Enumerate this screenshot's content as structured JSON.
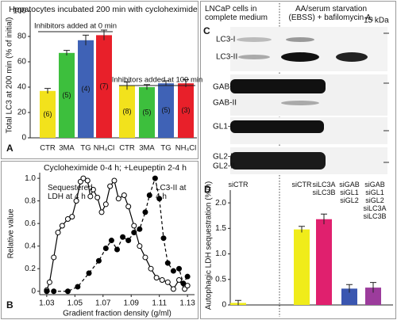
{
  "chart_data": [
    {
      "type": "bar",
      "panel": "A",
      "title": "Hepatocytes incubated 200 min with cycloheximide",
      "y_label": "Total LC3 at 200 min (% of initial)",
      "group_labels": [
        "Inhibitors added at 0 min",
        "Inhibitors added at 100 min"
      ],
      "categories": [
        "CTR",
        "3MA",
        "TG",
        "NH₄Cl",
        "CTR",
        "3MA",
        "TG",
        "NH₄Cl"
      ],
      "values": [
        37,
        67,
        77,
        81,
        41,
        40,
        43,
        43
      ],
      "errors": [
        2,
        2,
        4,
        4,
        3,
        2,
        2,
        3
      ],
      "counts": [
        "(6)",
        "(5)",
        "(4)",
        "(7)",
        "(8)",
        "(5)",
        "(5)",
        "(3)"
      ],
      "colors": [
        "#f2e21c",
        "#3dbf3d",
        "#3f62b6",
        "#e8202a",
        "#f2e21c",
        "#3dbf3d",
        "#3f62b6",
        "#e8202a"
      ],
      "ylim": [
        0,
        100
      ],
      "yticks": [
        0,
        20,
        40,
        60,
        80,
        100
      ]
    },
    {
      "type": "line",
      "panel": "B",
      "title": "Cycloheximide 0-4 h; +Leupeptin 2-4 h",
      "x_label": "Gradient fraction density (g/ml)",
      "y_label": "Relative value",
      "xlim": [
        1.025,
        1.135
      ],
      "xticks": [
        1.03,
        1.05,
        1.07,
        1.09,
        1.11,
        1.13
      ],
      "ylim": [
        -0.03,
        1.05
      ],
      "yticks": [
        0,
        0.2,
        0.4,
        0.6,
        0.8,
        {
          "value": 1,
          "label": "1.0"
        }
      ],
      "series": [
        {
          "name": "Sequestered LDH at 4 h",
          "color": "#000000",
          "marker": "open",
          "dashed": false,
          "x": [
            1.03,
            1.032,
            1.035,
            1.038,
            1.041,
            1.045,
            1.048,
            1.051,
            1.054,
            1.056,
            1.059,
            1.061,
            1.063,
            1.066,
            1.069,
            1.072,
            1.075,
            1.078,
            1.081,
            1.085,
            1.088,
            1.092,
            1.096,
            1.1,
            1.104,
            1.108,
            1.112,
            1.116,
            1.12,
            1.124,
            1.128,
            1.13
          ],
          "values": [
            0.01,
            0.08,
            0.3,
            0.52,
            0.58,
            0.64,
            0.66,
            0.8,
            0.97,
            1.0,
            0.98,
            0.84,
            0.9,
            0.83,
            0.7,
            0.77,
            0.93,
            0.98,
            0.82,
            0.85,
            0.75,
            0.58,
            0.4,
            0.3,
            0.2,
            0.12,
            0.1,
            0.08,
            0.02,
            0.1,
            0.02,
            0.05
          ]
        },
        {
          "name": "LC3-II at 4 h",
          "color": "#000000",
          "marker": "filled",
          "dashed": true,
          "x": [
            1.03,
            1.035,
            1.045,
            1.052,
            1.06,
            1.067,
            1.072,
            1.076,
            1.08,
            1.084,
            1.088,
            1.092,
            1.096,
            1.1,
            1.103,
            1.107,
            1.11,
            1.113,
            1.116,
            1.12,
            1.124,
            1.127,
            1.13
          ],
          "values": [
            0,
            0,
            0,
            0.04,
            0.16,
            0.27,
            0.38,
            0.45,
            0.37,
            0.48,
            0.45,
            0.52,
            0.55,
            0.7,
            0.85,
            1.0,
            0.82,
            0.47,
            0.25,
            0.18,
            0.2,
            0.07,
            0.13
          ]
        }
      ]
    },
    {
      "type": "bar",
      "panel": "D",
      "y_label": "Autophagic LDH sequestration (%/h)",
      "categories": [
        "siCTR",
        "siCTR",
        "siLC3A siLC3B",
        "siGAB siGL1 siGL2",
        "siGAB siGL1 siGL2 siLC3A siLC3B"
      ],
      "values": [
        0.04,
        1.48,
        1.68,
        0.32,
        0.34
      ],
      "errors": [
        0.05,
        0.06,
        0.1,
        0.08,
        0.1
      ],
      "colors": [
        "#f0ec1a",
        "#f0ec1a",
        "#e0206e",
        "#3a56b0",
        "#9c3c9c"
      ],
      "ylim": [
        0,
        2.25
      ],
      "yticks": [
        0,
        0.5,
        {
          "value": 1,
          "label": "1.0"
        },
        1.5,
        {
          "value": 2,
          "label": "2.0"
        }
      ]
    }
  ],
  "blot": {
    "panel": "C",
    "headers": [
      "LNCaP cells in complete medium",
      "AA/serum starvation (EBSS) + bafilomycin A₁"
    ],
    "marker": "15 kDa",
    "bands": [
      "LC3-I",
      "LC3-II",
      "GAB-I",
      "GAB-II",
      "GL1-I",
      "GL2-I",
      "GL2-II"
    ]
  }
}
